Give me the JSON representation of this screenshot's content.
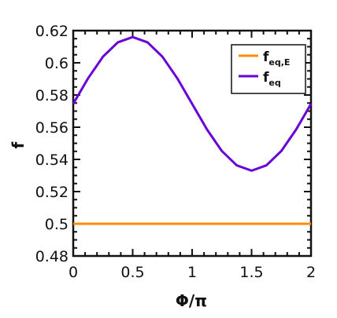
{
  "chart_data": {
    "type": "line",
    "xlabel": "Φ/π",
    "ylabel": "f",
    "xlim": [
      0,
      2
    ],
    "ylim": [
      0.48,
      0.62
    ],
    "x_ticks": [
      0,
      0.5,
      1,
      1.5,
      2
    ],
    "x_tick_labels": [
      "0",
      "0.5",
      "1",
      "1.5",
      "2"
    ],
    "y_ticks": [
      0.48,
      0.5,
      0.52,
      0.54,
      0.56,
      0.58,
      0.6,
      0.62
    ],
    "y_tick_labels": [
      "0.48",
      "0.5",
      "0.52",
      "0.54",
      "0.56",
      "0.58",
      "0.6",
      "0.62"
    ],
    "grid": false,
    "legend_position": "top-right",
    "series": [
      {
        "name_main": "f",
        "name_sub": "eq,E",
        "color": "#ff8c00",
        "x": [
          0,
          0.25,
          0.5,
          0.75,
          1.0,
          1.25,
          1.5,
          1.75,
          2.0
        ],
        "y": [
          0.5,
          0.5,
          0.5,
          0.5,
          0.5,
          0.5,
          0.5,
          0.5,
          0.5
        ]
      },
      {
        "name_main": "f",
        "name_sub": "eq",
        "color": "#6a00d8",
        "x": [
          0,
          0.125,
          0.25,
          0.375,
          0.5,
          0.625,
          0.75,
          0.875,
          1.0,
          1.125,
          1.25,
          1.375,
          1.5,
          1.625,
          1.75,
          1.875,
          2.0
        ],
        "y": [
          0.5745,
          0.5904,
          0.6038,
          0.6127,
          0.616,
          0.6127,
          0.6038,
          0.5904,
          0.5745,
          0.5586,
          0.5452,
          0.5363,
          0.533,
          0.5363,
          0.5452,
          0.5586,
          0.5745
        ]
      }
    ]
  }
}
